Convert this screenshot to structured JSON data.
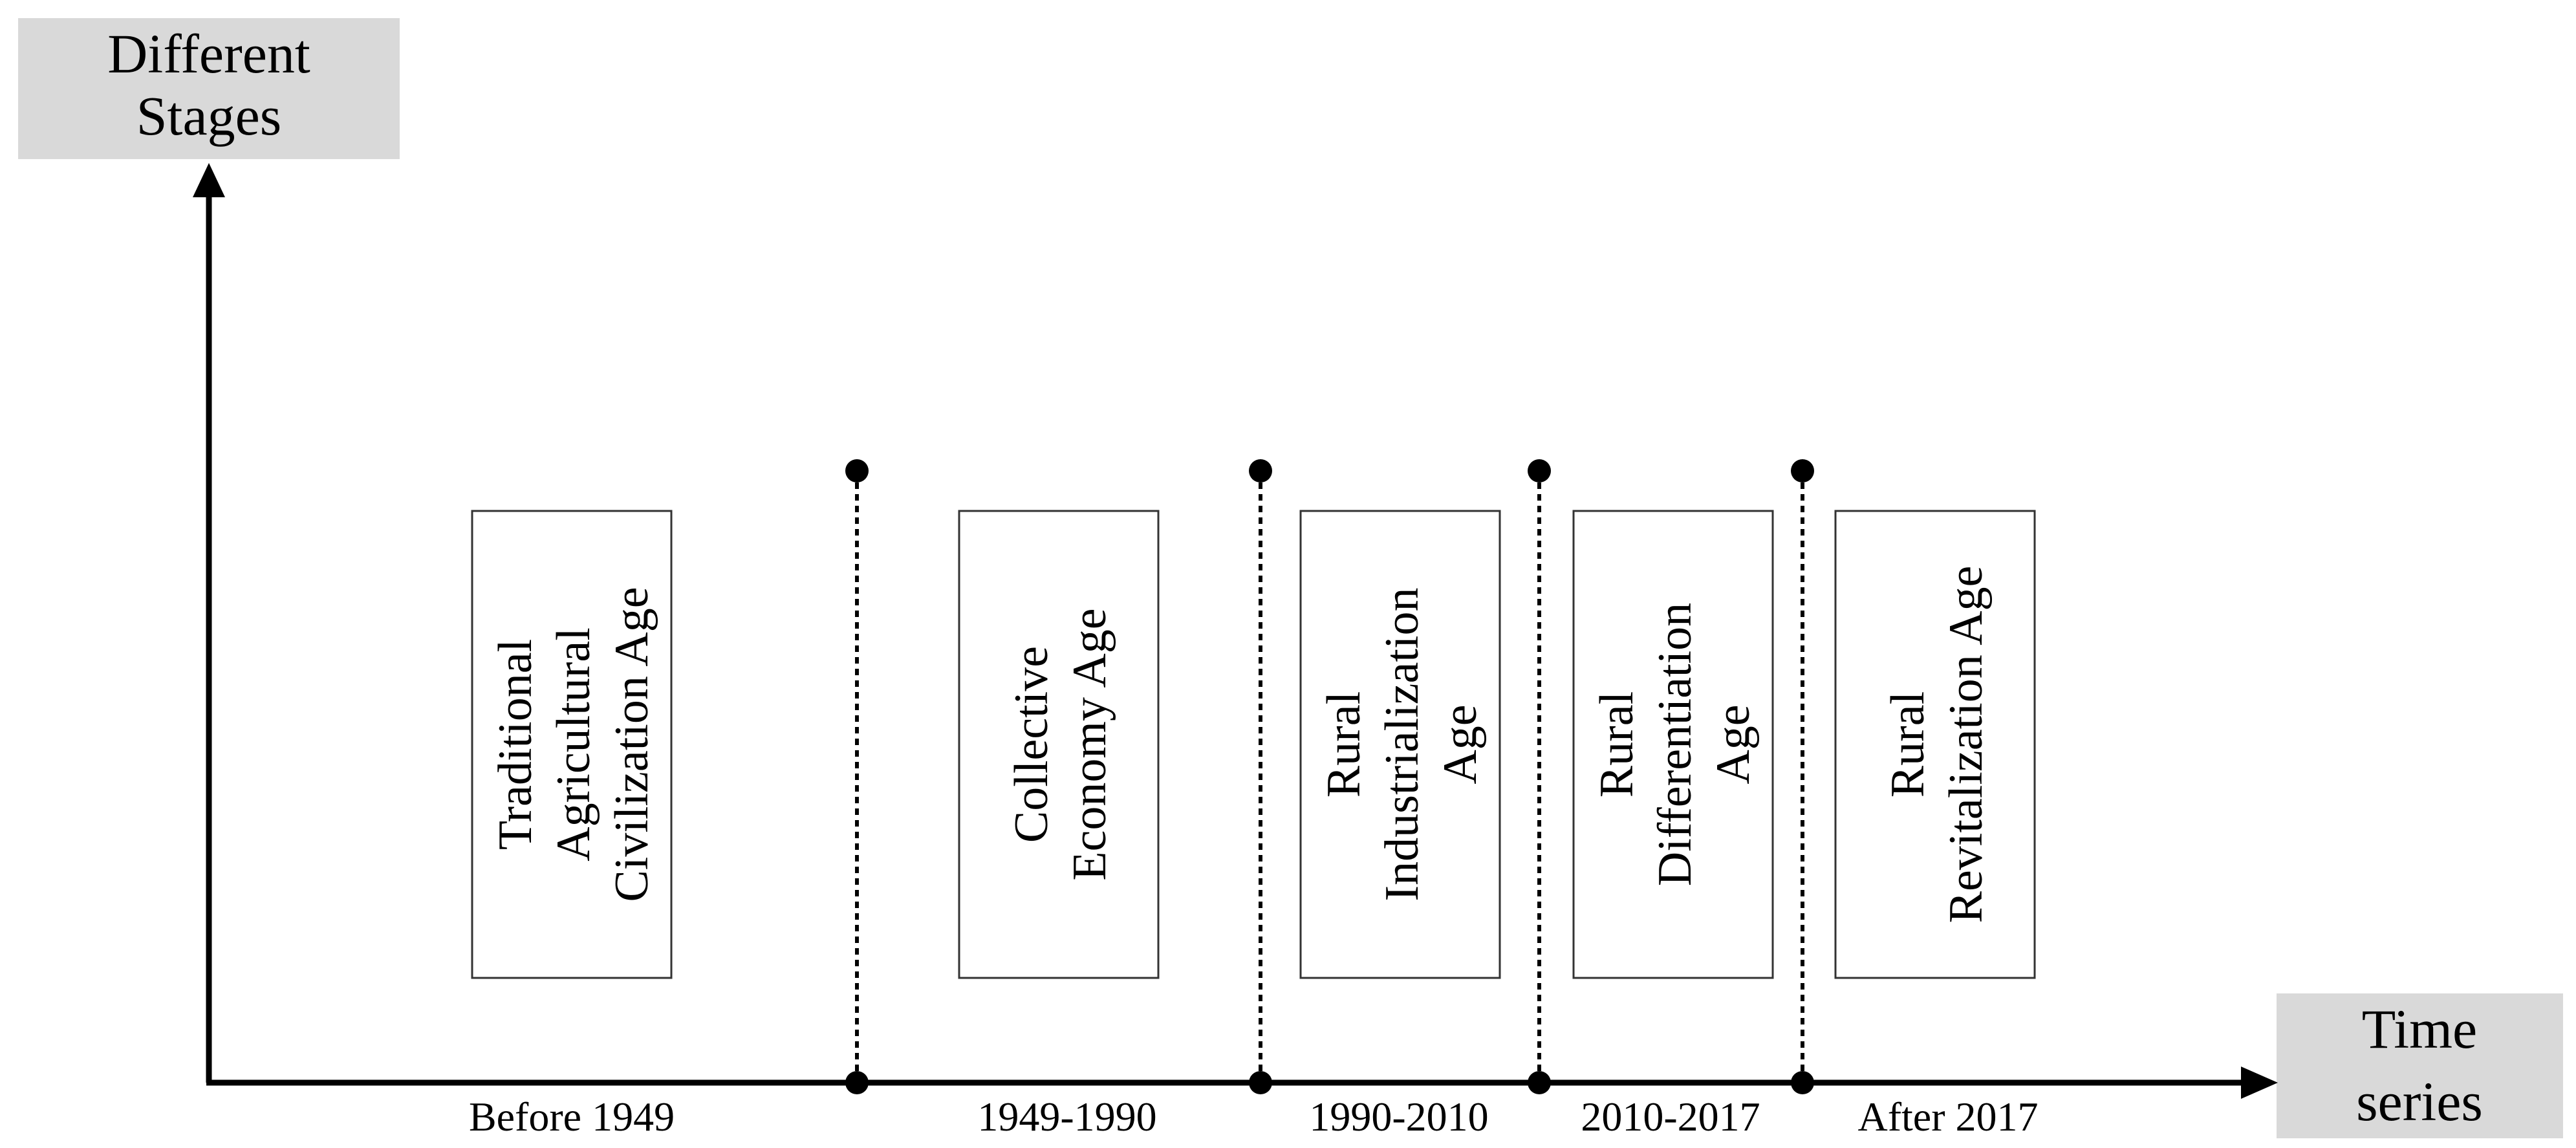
{
  "y_axis_label": [
    "Different",
    "Stages"
  ],
  "x_axis_label": [
    "Time",
    "series"
  ],
  "stages": [
    {
      "lines": [
        "Traditional",
        "Agricultural",
        "Civilization Age"
      ],
      "period": "Before 1949"
    },
    {
      "lines": [
        "Collective",
        "Economy Age"
      ],
      "period": "1949-1990"
    },
    {
      "lines": [
        "Rural",
        "Industrialization",
        "Age"
      ],
      "period": "1990-2010"
    },
    {
      "lines": [
        "Rural",
        "Differentiation",
        "Age"
      ],
      "period": "2010-2017"
    },
    {
      "lines": [
        "Rural",
        "Revitalization Age"
      ],
      "period": "After 2017"
    }
  ],
  "colors": {
    "label_box": "#d9d9d9",
    "line": "#000000",
    "box_border": "#333333"
  }
}
